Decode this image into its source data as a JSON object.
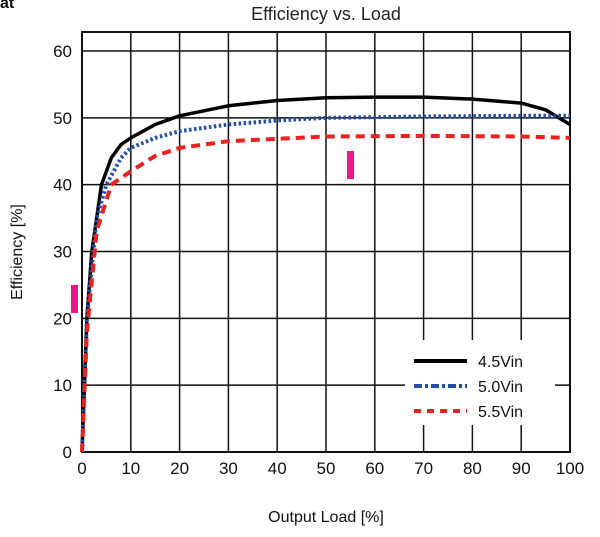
{
  "corner_text": "at",
  "chart_data": {
    "type": "line",
    "title": "Efficiency vs. Load",
    "xlabel": "Output Load [%]",
    "ylabel": "Efficiency [%]",
    "xlim": [
      0,
      100
    ],
    "ylim": [
      0,
      60
    ],
    "xticks": [
      0,
      10,
      20,
      30,
      40,
      50,
      60,
      70,
      80,
      90,
      100
    ],
    "yticks": [
      0,
      10,
      20,
      30,
      40,
      50,
      60
    ],
    "grid": true,
    "legend_position": "bottom-right",
    "series": [
      {
        "name": "4.5Vin",
        "color": "#000000",
        "style": "solid",
        "x": [
          0,
          1,
          2,
          4,
          6,
          8,
          10,
          15,
          20,
          30,
          40,
          50,
          60,
          70,
          80,
          90,
          95,
          100
        ],
        "y": [
          0,
          20,
          30,
          40,
          44,
          46,
          47,
          49,
          50.3,
          51.8,
          52.6,
          53,
          53.1,
          53.1,
          52.8,
          52.2,
          51.2,
          49
        ]
      },
      {
        "name": "5.0Vin",
        "color": "#1f4fa8",
        "style": "dotted",
        "x": [
          0,
          1,
          3,
          5,
          8,
          10,
          15,
          20,
          30,
          40,
          50,
          70,
          90,
          100
        ],
        "y": [
          0,
          20,
          35,
          40,
          44,
          45.5,
          47,
          48,
          49,
          49.6,
          50,
          50.2,
          50.3,
          50.3
        ]
      },
      {
        "name": "5.5Vin",
        "color": "#e8221e",
        "style": "dashed",
        "x": [
          0,
          1,
          3,
          6,
          10,
          15,
          20,
          30,
          50,
          70,
          90,
          100
        ],
        "y": [
          0,
          18,
          33,
          40,
          42,
          44.3,
          45.5,
          46.5,
          47.2,
          47.3,
          47.2,
          47
        ]
      }
    ],
    "annotations_color": "#e8198a"
  }
}
